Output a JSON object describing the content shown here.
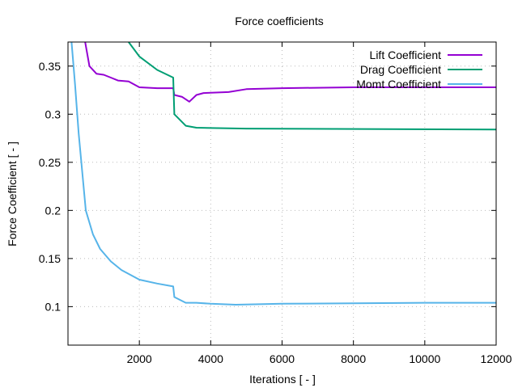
{
  "chart_data": {
    "type": "line",
    "title": "Force coefficients",
    "xlabel": "Iterations [ - ]",
    "ylabel": "Force Coefficient [ - ]",
    "xlim": [
      0,
      12000
    ],
    "ylim": [
      0.06,
      0.375
    ],
    "xticks": [
      2000,
      4000,
      6000,
      8000,
      10000,
      12000
    ],
    "xtick_labels": [
      "2000",
      "4000",
      "6000",
      "8000",
      "10000",
      "12000"
    ],
    "yticks": [
      0.1,
      0.15,
      0.2,
      0.25,
      0.3,
      0.35
    ],
    "ytick_labels": [
      "0.1",
      "0.15",
      "0.2",
      "0.25",
      "0.3",
      "0.35"
    ],
    "grid": true,
    "legend_position": "top-right",
    "series": [
      {
        "name": "Lift Coefficient",
        "color": "#9400d3",
        "x": [
          480,
          600,
          800,
          1000,
          1200,
          1400,
          1700,
          2000,
          2500,
          2950,
          2980,
          3200,
          3400,
          3600,
          3800,
          4500,
          5000,
          6000,
          8000,
          12000
        ],
        "y": [
          0.375,
          0.35,
          0.342,
          0.341,
          0.338,
          0.335,
          0.334,
          0.328,
          0.327,
          0.327,
          0.32,
          0.318,
          0.313,
          0.32,
          0.322,
          0.323,
          0.326,
          0.327,
          0.328,
          0.328
        ]
      },
      {
        "name": "Drag Coefficient",
        "color": "#009e73",
        "x": [
          1700,
          2000,
          2500,
          2950,
          2980,
          3300,
          3600,
          5000,
          12000
        ],
        "y": [
          0.375,
          0.36,
          0.346,
          0.338,
          0.3,
          0.288,
          0.286,
          0.285,
          0.284
        ]
      },
      {
        "name": "Momt Coefficient",
        "color": "#56b4e9",
        "x": [
          100,
          200,
          300,
          400,
          500,
          700,
          900,
          1200,
          1500,
          2000,
          2500,
          2950,
          2980,
          3300,
          3600,
          4000,
          4700,
          6000,
          10000,
          12000
        ],
        "y": [
          0.375,
          0.33,
          0.28,
          0.24,
          0.2,
          0.175,
          0.16,
          0.147,
          0.138,
          0.128,
          0.124,
          0.121,
          0.11,
          0.104,
          0.104,
          0.103,
          0.102,
          0.103,
          0.104,
          0.104
        ]
      }
    ]
  }
}
